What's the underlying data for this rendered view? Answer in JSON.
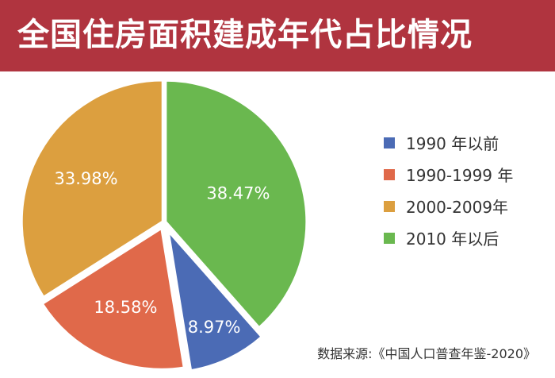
{
  "header": {
    "title": "全国住房面积建成年代占比情况"
  },
  "chart_data": {
    "type": "pie",
    "title": "全国住房面积建成年代占比情况",
    "start": "12 o'clock, clockwise",
    "slices": [
      {
        "label": "2010 年以后",
        "value": 38.47,
        "display": "38.47%",
        "color": "#6ab84f"
      },
      {
        "label": "1990 年以前",
        "value": 8.97,
        "display": "8.97%",
        "color": "#4b6bb5"
      },
      {
        "label": "1990-1999 年",
        "value": 18.58,
        "display": "18.58%",
        "color": "#e0694a"
      },
      {
        "label": "2000-2009年",
        "value": 33.98,
        "display": "33.98%",
        "color": "#dc9f3f"
      }
    ],
    "legend": {
      "placement": "right",
      "items": [
        {
          "label": "1990 年以前",
          "color": "#4b6bb5"
        },
        {
          "label": "1990-1999 年",
          "color": "#e0694a"
        },
        {
          "label": "2000-2009年",
          "color": "#dc9f3f"
        },
        {
          "label": "2010 年以后",
          "color": "#6ab84f"
        }
      ]
    }
  },
  "source": "数据来源:《中国人口普查年鉴-2020》"
}
